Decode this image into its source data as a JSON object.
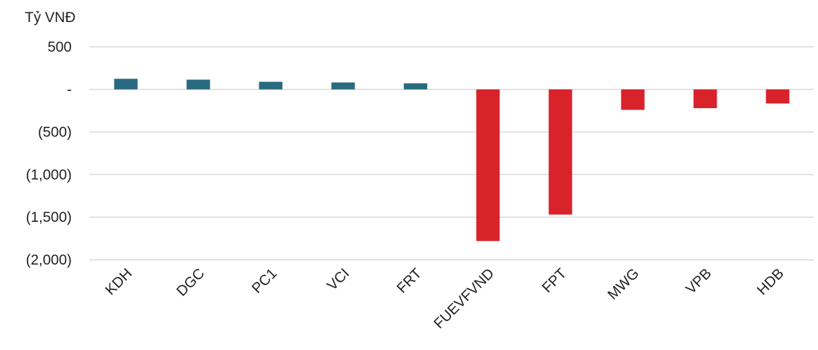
{
  "chart_data": {
    "type": "bar",
    "ylabel": "Tỷ VNĐ",
    "categories": [
      "KDH",
      "DGC",
      "PC1",
      "VCI",
      "FRT",
      "FUEVFVND",
      "FPT",
      "MWG",
      "VPB",
      "HDB"
    ],
    "values": [
      125,
      115,
      90,
      82,
      72,
      -1780,
      -1470,
      -240,
      -220,
      -165
    ],
    "ylim": [
      -2000,
      500
    ],
    "yticks": [
      500,
      0,
      -500,
      -1000,
      -1500,
      -2000
    ],
    "ytick_labels": [
      "500",
      "-",
      "(500)",
      "(1,000)",
      "(1,500)",
      "(2,000)"
    ],
    "colors": {
      "positive": "#2a6a80",
      "negative": "#d9232a",
      "grid": "#d9d9d9"
    },
    "grid": true,
    "legend": "none"
  }
}
